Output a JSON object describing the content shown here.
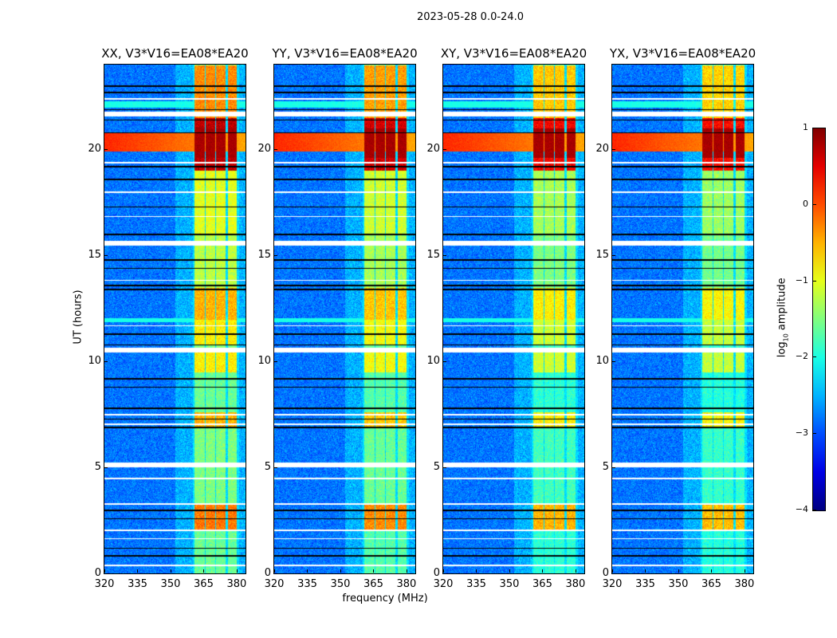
{
  "suptitle": "2023-05-28 0.0-24.0",
  "xlabel": "frequency (MHz)",
  "ylabel": "UT (hours)",
  "colorbar": {
    "label_prefix": "log",
    "label_sub": "10",
    "label_suffix": " amplitude",
    "range": [
      -4,
      1
    ],
    "ticks": [
      1,
      0,
      -1,
      -2,
      -3,
      -4
    ],
    "tick_labels": [
      "1",
      "0",
      "−1",
      "−2",
      "−3",
      "−4"
    ],
    "colormap": "jet"
  },
  "chart_data": {
    "type": "heatmap",
    "xlim": [
      320,
      384
    ],
    "ylim": [
      0,
      24
    ],
    "xticks": [
      320,
      335,
      350,
      365,
      380
    ],
    "xtick_labels": [
      "320",
      "335",
      "350",
      "365",
      "380"
    ],
    "yticks": [
      0,
      5,
      10,
      15,
      20
    ],
    "ytick_labels": [
      "0",
      "5",
      "10",
      "15",
      "20"
    ],
    "background_level": -2.8,
    "rfi_channels_mhz": [
      [
        360.5,
        365.2
      ],
      [
        365.9,
        369.9
      ],
      [
        370.6,
        374.9
      ],
      [
        375.7,
        380.0
      ]
    ],
    "rfi_time_levels": [
      {
        "t": [
          0,
          2.1
        ],
        "level": -1.6
      },
      {
        "t": [
          2.1,
          3.3
        ],
        "level": -0.2
      },
      {
        "t": [
          3.3,
          6.9
        ],
        "level": -1.5
      },
      {
        "t": [
          6.9,
          7.6
        ],
        "level": -0.5
      },
      {
        "t": [
          7.6,
          9.5
        ],
        "level": -1.6
      },
      {
        "t": [
          9.5,
          10.5
        ],
        "level": -0.8
      },
      {
        "t": [
          10.8,
          12.0
        ],
        "level": -0.8
      },
      {
        "t": [
          12.0,
          13.5
        ],
        "level": -0.5
      },
      {
        "t": [
          13.5,
          16.0
        ],
        "level": -1.2
      },
      {
        "t": [
          16.0,
          19.0
        ],
        "level": -1.0
      },
      {
        "t": [
          19.0,
          21.5
        ],
        "level": 0.7
      },
      {
        "t": [
          21.5,
          24.0
        ],
        "level": -0.3
      }
    ],
    "broadband_events": [
      {
        "t": [
          19.9,
          20.8
        ],
        "level": 0.2
      },
      {
        "t": [
          22.0,
          22.3
        ],
        "level": -2.0
      },
      {
        "t": [
          11.85,
          12.05
        ],
        "level": -2.0
      }
    ],
    "flagged_hours": [
      0.4,
      1.65,
      2.05,
      3.3,
      4.5,
      5.15,
      7.05,
      7.5,
      10.55,
      11.7,
      13.85,
      15.6,
      16.85,
      18.0,
      19.4,
      21.7,
      22.4
    ],
    "dropout_hours": [
      0.85,
      1.2,
      2.6,
      3.0,
      6.9,
      7.3,
      7.8,
      8.8,
      9.2,
      10.8,
      11.3,
      13.4,
      13.6,
      14.4,
      14.8,
      16.0,
      17.3,
      18.6,
      19.2,
      20.8,
      21.4,
      21.9,
      22.7,
      23.0
    ],
    "panels": [
      {
        "title": "XX, V3*V16=EA08*EA20",
        "rfi_offset": 0.0
      },
      {
        "title": "YY, V3*V16=EA08*EA20",
        "rfi_offset": -0.1
      },
      {
        "title": "XY, V3*V16=EA08*EA20",
        "rfi_offset": -0.3
      },
      {
        "title": "YX, V3*V16=EA08*EA20",
        "rfi_offset": -0.35
      }
    ]
  }
}
